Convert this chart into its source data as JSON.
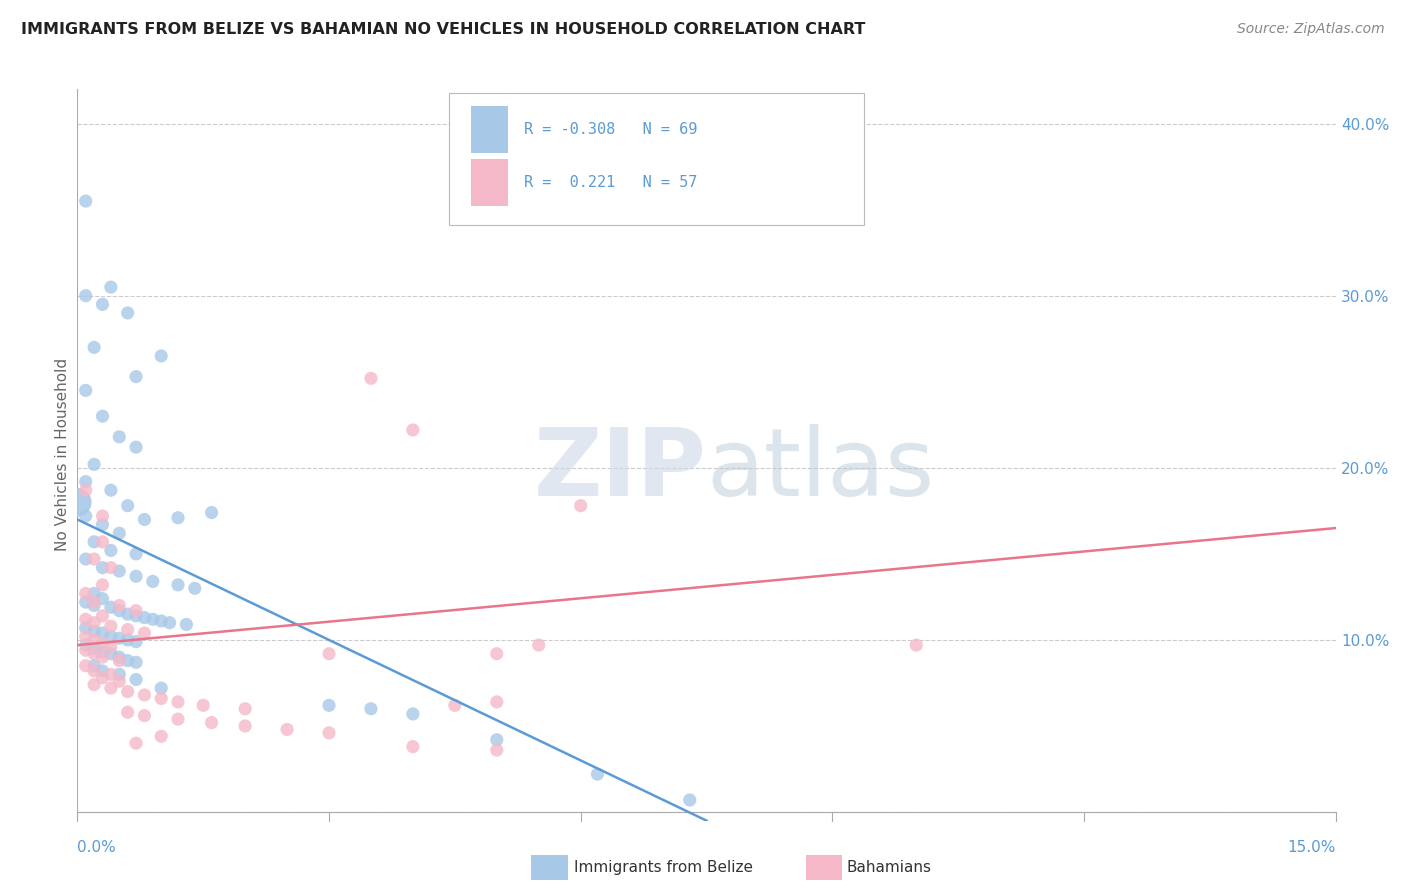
{
  "title": "IMMIGRANTS FROM BELIZE VS BAHAMIAN NO VEHICLES IN HOUSEHOLD CORRELATION CHART",
  "source": "Source: ZipAtlas.com",
  "ylabel": "No Vehicles in Household",
  "ytick_values": [
    0.0,
    0.1,
    0.2,
    0.3,
    0.4
  ],
  "ytick_labels": [
    "",
    "10.0%",
    "20.0%",
    "30.0%",
    "40.0%"
  ],
  "xrange": [
    0.0,
    0.15
  ],
  "yrange": [
    -0.005,
    0.42
  ],
  "legend_blue_r": "-0.308",
  "legend_blue_n": "69",
  "legend_pink_r": " 0.221",
  "legend_pink_n": "57",
  "blue_color": "#a8c8e8",
  "pink_color": "#f4b8c8",
  "blue_line_color": "#5b9bd5",
  "pink_line_color": "#e8758a",
  "accent_color": "#5b9bd5",
  "watermark_color": "#ccd8e8",
  "blue_line": [
    [
      0.0,
      0.17
    ],
    [
      0.075,
      -0.005
    ]
  ],
  "pink_line": [
    [
      0.0,
      0.097
    ],
    [
      0.15,
      0.165
    ]
  ],
  "blue_large_point": [
    [
      0.0,
      0.18
    ]
  ],
  "blue_scatter": [
    [
      0.001,
      0.355
    ],
    [
      0.004,
      0.305
    ],
    [
      0.006,
      0.29
    ],
    [
      0.001,
      0.3
    ],
    [
      0.003,
      0.295
    ],
    [
      0.002,
      0.27
    ],
    [
      0.01,
      0.265
    ],
    [
      0.007,
      0.253
    ],
    [
      0.001,
      0.245
    ],
    [
      0.003,
      0.23
    ],
    [
      0.005,
      0.218
    ],
    [
      0.007,
      0.212
    ],
    [
      0.002,
      0.202
    ],
    [
      0.001,
      0.192
    ],
    [
      0.004,
      0.187
    ],
    [
      0.006,
      0.178
    ],
    [
      0.001,
      0.172
    ],
    [
      0.003,
      0.167
    ],
    [
      0.005,
      0.162
    ],
    [
      0.008,
      0.17
    ],
    [
      0.012,
      0.171
    ],
    [
      0.016,
      0.174
    ],
    [
      0.002,
      0.157
    ],
    [
      0.004,
      0.152
    ],
    [
      0.007,
      0.15
    ],
    [
      0.001,
      0.147
    ],
    [
      0.003,
      0.142
    ],
    [
      0.005,
      0.14
    ],
    [
      0.007,
      0.137
    ],
    [
      0.009,
      0.134
    ],
    [
      0.012,
      0.132
    ],
    [
      0.014,
      0.13
    ],
    [
      0.002,
      0.127
    ],
    [
      0.003,
      0.124
    ],
    [
      0.001,
      0.122
    ],
    [
      0.002,
      0.12
    ],
    [
      0.004,
      0.119
    ],
    [
      0.005,
      0.117
    ],
    [
      0.006,
      0.115
    ],
    [
      0.007,
      0.114
    ],
    [
      0.008,
      0.113
    ],
    [
      0.009,
      0.112
    ],
    [
      0.01,
      0.111
    ],
    [
      0.011,
      0.11
    ],
    [
      0.013,
      0.109
    ],
    [
      0.001,
      0.107
    ],
    [
      0.002,
      0.105
    ],
    [
      0.003,
      0.104
    ],
    [
      0.004,
      0.102
    ],
    [
      0.005,
      0.101
    ],
    [
      0.006,
      0.1
    ],
    [
      0.007,
      0.099
    ],
    [
      0.001,
      0.097
    ],
    [
      0.002,
      0.095
    ],
    [
      0.003,
      0.093
    ],
    [
      0.004,
      0.092
    ],
    [
      0.005,
      0.09
    ],
    [
      0.006,
      0.088
    ],
    [
      0.007,
      0.087
    ],
    [
      0.002,
      0.085
    ],
    [
      0.003,
      0.082
    ],
    [
      0.005,
      0.08
    ],
    [
      0.007,
      0.077
    ],
    [
      0.01,
      0.072
    ],
    [
      0.03,
      0.062
    ],
    [
      0.035,
      0.06
    ],
    [
      0.04,
      0.057
    ],
    [
      0.05,
      0.042
    ],
    [
      0.062,
      0.022
    ],
    [
      0.073,
      0.007
    ]
  ],
  "pink_scatter": [
    [
      0.001,
      0.187
    ],
    [
      0.003,
      0.172
    ],
    [
      0.003,
      0.157
    ],
    [
      0.002,
      0.147
    ],
    [
      0.004,
      0.142
    ],
    [
      0.003,
      0.132
    ],
    [
      0.001,
      0.127
    ],
    [
      0.002,
      0.122
    ],
    [
      0.005,
      0.12
    ],
    [
      0.007,
      0.117
    ],
    [
      0.003,
      0.114
    ],
    [
      0.001,
      0.112
    ],
    [
      0.002,
      0.11
    ],
    [
      0.004,
      0.108
    ],
    [
      0.006,
      0.106
    ],
    [
      0.008,
      0.104
    ],
    [
      0.001,
      0.102
    ],
    [
      0.002,
      0.1
    ],
    [
      0.003,
      0.098
    ],
    [
      0.004,
      0.096
    ],
    [
      0.001,
      0.094
    ],
    [
      0.002,
      0.092
    ],
    [
      0.003,
      0.09
    ],
    [
      0.005,
      0.088
    ],
    [
      0.001,
      0.085
    ],
    [
      0.002,
      0.082
    ],
    [
      0.004,
      0.08
    ],
    [
      0.003,
      0.078
    ],
    [
      0.005,
      0.076
    ],
    [
      0.002,
      0.074
    ],
    [
      0.004,
      0.072
    ],
    [
      0.006,
      0.07
    ],
    [
      0.008,
      0.068
    ],
    [
      0.01,
      0.066
    ],
    [
      0.012,
      0.064
    ],
    [
      0.015,
      0.062
    ],
    [
      0.02,
      0.06
    ],
    [
      0.006,
      0.058
    ],
    [
      0.008,
      0.056
    ],
    [
      0.012,
      0.054
    ],
    [
      0.016,
      0.052
    ],
    [
      0.02,
      0.05
    ],
    [
      0.025,
      0.048
    ],
    [
      0.03,
      0.046
    ],
    [
      0.01,
      0.044
    ],
    [
      0.007,
      0.04
    ],
    [
      0.04,
      0.038
    ],
    [
      0.05,
      0.036
    ],
    [
      0.03,
      0.092
    ],
    [
      0.035,
      0.252
    ],
    [
      0.04,
      0.222
    ],
    [
      0.06,
      0.178
    ],
    [
      0.055,
      0.097
    ],
    [
      0.05,
      0.092
    ],
    [
      0.1,
      0.097
    ],
    [
      0.045,
      0.062
    ],
    [
      0.05,
      0.064
    ]
  ]
}
